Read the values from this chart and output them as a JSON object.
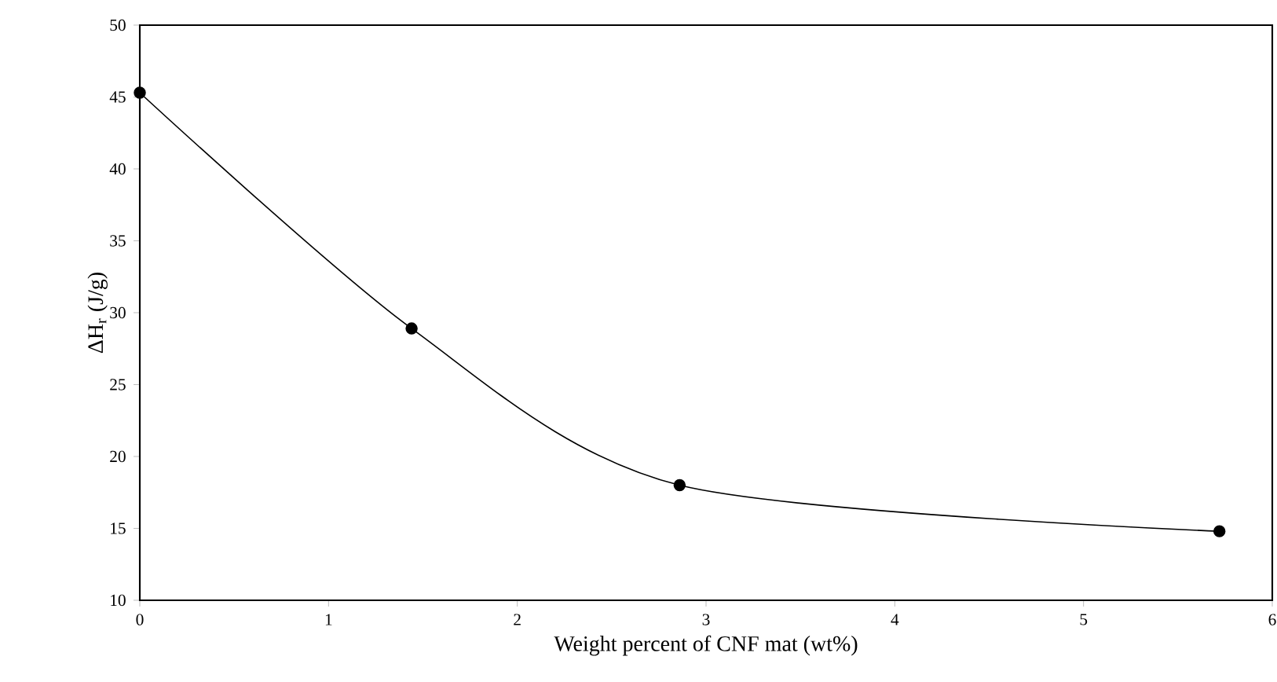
{
  "chart_data": {
    "type": "line",
    "xlabel": "Weight percent of CNF mat (wt%)",
    "ylabel": "ΔH$_{r}$ (J/g)",
    "x": [
      0,
      1.44,
      2.86,
      5.72
    ],
    "series": [
      {
        "color": "#000000",
        "values": [
          45.3,
          28.9,
          18.0,
          14.8
        ]
      }
    ],
    "xlim": [
      0,
      6
    ],
    "xticks": [
      0,
      1,
      2,
      3,
      4,
      5,
      6
    ],
    "ylim": [
      10,
      50
    ],
    "yticks": [
      10,
      15,
      20,
      25,
      30,
      35,
      40,
      45,
      50
    ],
    "marker": "circle",
    "line_style": "solid"
  }
}
